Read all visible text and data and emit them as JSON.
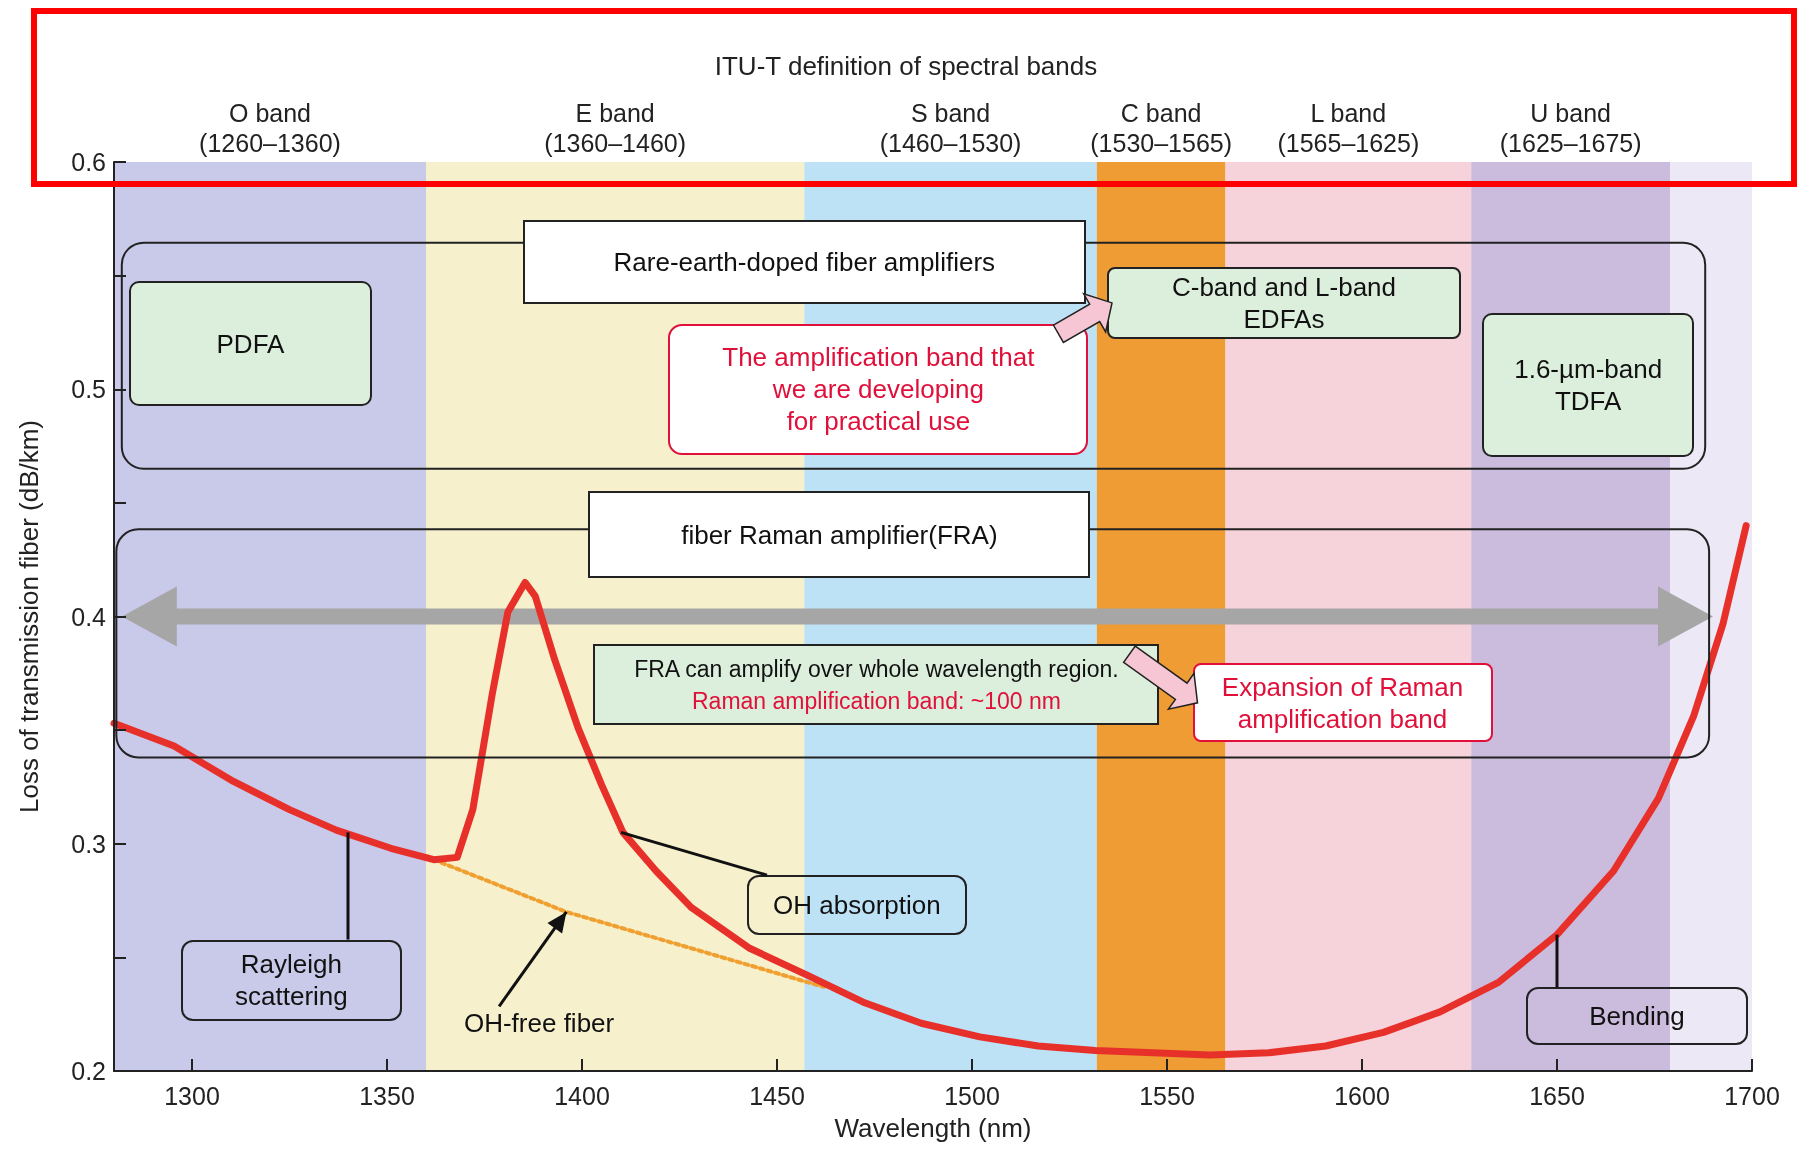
{
  "chart_data": {
    "type": "line",
    "title": "ITU-T definition of spectral bands",
    "xlabel": "Wavelength (nm)",
    "ylabel": "Loss of transmission fiber (dB/km)",
    "xlim": [
      1280,
      1700
    ],
    "xticks": [
      1300,
      1350,
      1400,
      1450,
      1500,
      1550,
      1600,
      1650,
      1700
    ],
    "ylim": [
      0.2,
      0.6
    ],
    "yticks": [
      0.2,
      {
        "value": 0.25,
        "label": null
      },
      0.3,
      {
        "value": 0.35,
        "label": null
      },
      0.4,
      {
        "value": 0.45,
        "label": null
      },
      0.5,
      {
        "value": 0.55,
        "label": null
      },
      0.6
    ],
    "grid": false,
    "marker": "none",
    "line_style": "solid",
    "series": [
      {
        "color": "#e8302a",
        "x": [
          1280,
          1295.4,
          1310,
          1325,
          1337,
          1351,
          1362,
          1368,
          1372,
          1377,
          1381,
          1385.4,
          1388,
          1393,
          1399,
          1405,
          1410.5,
          1419,
          1428,
          1443,
          1458,
          1472.5,
          1487,
          1502,
          1517,
          1531.6,
          1546.4,
          1561,
          1576,
          1590.7,
          1605.5,
          1620,
          1635,
          1650,
          1664.5,
          1676,
          1685,
          1692.6,
          1698.5
        ],
        "values": [
          0.353,
          0.343,
          0.328,
          0.315,
          0.306,
          0.298,
          0.293,
          0.294,
          0.315,
          0.366,
          0.402,
          0.415,
          0.409,
          0.381,
          0.351,
          0.326,
          0.305,
          0.288,
          0.272,
          0.254,
          0.242,
          0.23,
          0.221,
          0.215,
          0.211,
          0.209,
          0.208,
          0.207,
          0.208,
          0.211,
          0.217,
          0.226,
          0.239,
          0.26,
          0.288,
          0.32,
          0.356,
          0.397,
          0.44
        ]
      },
      {
        "color": "#f0a030",
        "line_style": "dotted",
        "x": [
          1362,
          1396,
          1462
        ],
        "values": [
          0.293,
          0.27,
          0.237
        ]
      }
    ],
    "bands": [
      {
        "axis": "x",
        "from": 1280,
        "to": 1360,
        "label": "O band\n(1260–1360)",
        "color": "#c9c9ea"
      },
      {
        "axis": "x",
        "from": 1360,
        "to": 1457,
        "label": "E band\n(1360–1460)",
        "color": "#f6f0cc"
      },
      {
        "axis": "x",
        "from": 1457,
        "to": 1532,
        "label": "S band\n(1460–1530)",
        "color": "#bde2f6"
      },
      {
        "axis": "x",
        "from": 1532,
        "to": 1565,
        "label": "C band\n(1530–1565)",
        "color": "#ee9c33"
      },
      {
        "axis": "x",
        "from": 1565,
        "to": 1628,
        "label": "L band\n(1565–1625)",
        "color": "#f6d2da"
      },
      {
        "axis": "x",
        "from": 1628,
        "to": 1679,
        "label": "U band\n(1625–1675)",
        "color": "#cbbbdd"
      },
      {
        "axis": "x",
        "from": 1679,
        "to": 1700,
        "label": null,
        "color": "#ece8f5"
      }
    ],
    "annotations": [
      "Rare-earth-doped fiber amplifiers",
      "PDFA",
      "C-band and L-band\nEDFAs",
      "1.6-µm-band\nTDFA",
      "The amplification band that\nwe are developing\nfor practical use",
      "fiber Raman amplifier(FRA)",
      "FRA can amplify over whole wavelength region.\nRaman amplification band: ~100 nm",
      "Expansion of Raman\namplification band",
      {
        "text": "Rayleigh\nscattering",
        "x": 1340,
        "y": 0.305
      },
      {
        "text": "OH-free fiber",
        "x": 1396,
        "y": 0.27
      },
      {
        "text": "OH absorption",
        "x": 1410,
        "y": 0.305
      },
      {
        "text": "Bending",
        "x": 1650,
        "y": 0.26
      }
    ]
  }
}
